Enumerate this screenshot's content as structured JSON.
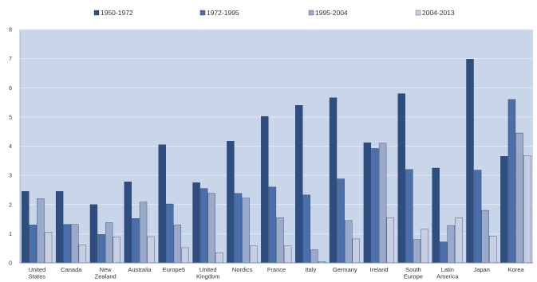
{
  "chart_data": {
    "type": "bar",
    "title": "",
    "xlabel": "",
    "ylabel": "",
    "ylim": [
      0,
      8
    ],
    "yticks": [
      0,
      1,
      2,
      3,
      4,
      5,
      6,
      7,
      8
    ],
    "grid": true,
    "legend_position": "top",
    "plot_background": "#c9d6ea",
    "categories": [
      [
        "United",
        "States"
      ],
      [
        "Canada"
      ],
      [
        "New",
        "Zealand"
      ],
      [
        "Australia"
      ],
      [
        "Europe5"
      ],
      [
        "United",
        "Kingdom"
      ],
      [
        "Nordics"
      ],
      [
        "France"
      ],
      [
        "Italy"
      ],
      [
        "Germany"
      ],
      [
        "Ireland"
      ],
      [
        "South",
        "Europe"
      ],
      [
        "Latin",
        "America"
      ],
      [
        "Japan"
      ],
      [
        "Korea"
      ]
    ],
    "series": [
      {
        "name": "1950-1972",
        "color": "#2e4e82",
        "values": [
          2.45,
          2.45,
          2.0,
          2.78,
          4.05,
          2.75,
          4.17,
          5.02,
          5.4,
          5.66,
          4.12,
          5.8,
          3.25,
          6.98,
          3.65
        ]
      },
      {
        "name": "1972-1995",
        "color": "#4a6faa",
        "values": [
          1.3,
          1.32,
          0.98,
          1.52,
          2.02,
          2.55,
          2.38,
          2.6,
          2.33,
          2.88,
          3.92,
          3.2,
          0.72,
          3.18,
          5.6
        ]
      },
      {
        "name": "1995-2004",
        "color": "#99aacd",
        "values": [
          2.2,
          1.32,
          1.38,
          2.08,
          1.3,
          2.38,
          2.22,
          1.55,
          0.45,
          1.45,
          4.1,
          0.8,
          1.28,
          1.8,
          4.45
        ]
      },
      {
        "name": "2004-2013",
        "color": "#c7d0e3",
        "values": [
          1.05,
          0.62,
          0.88,
          0.9,
          0.52,
          0.35,
          0.58,
          0.58,
          0.05,
          0.82,
          1.55,
          1.15,
          1.55,
          0.92,
          3.68
        ]
      }
    ]
  }
}
